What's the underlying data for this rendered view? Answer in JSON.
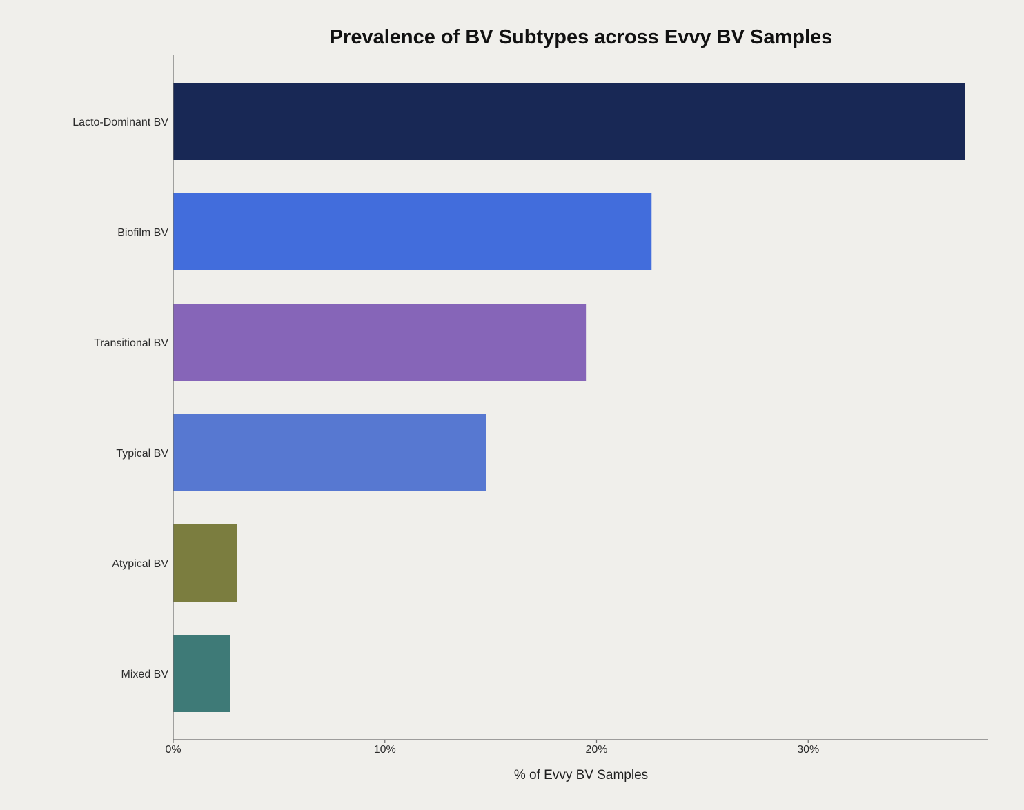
{
  "chart_data": {
    "type": "bar",
    "orientation": "horizontal",
    "title": "Prevalence of BV Subtypes across Evvy BV Samples",
    "xlabel": "% of Evvy BV Samples",
    "ylabel": "",
    "categories": [
      "Lacto-Dominant BV",
      "Biofilm BV",
      "Transitional BV",
      "Typical BV",
      "Atypical BV",
      "Mixed BV"
    ],
    "values": [
      37.4,
      22.6,
      19.5,
      14.8,
      3.0,
      2.7
    ],
    "colors": [
      "#182855",
      "#426ddc",
      "#8665b8",
      "#5778d1",
      "#7b7d3f",
      "#3e7a77"
    ],
    "xlim": [
      0,
      38.5
    ],
    "xticks": [
      0,
      10,
      20,
      30
    ],
    "xtick_labels": [
      "0%",
      "10%",
      "20%",
      "30%"
    ],
    "grid": false,
    "legend": "none"
  }
}
